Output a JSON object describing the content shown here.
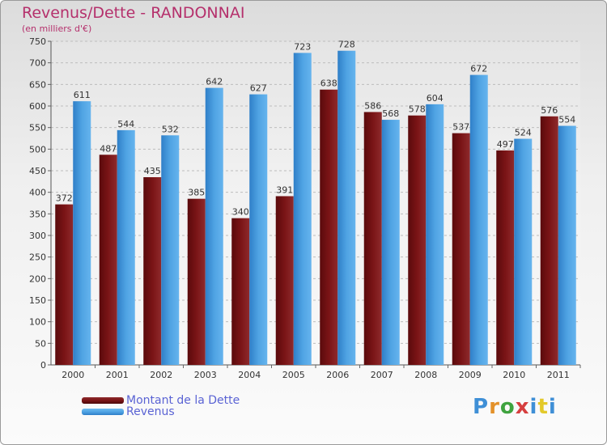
{
  "chart_data": {
    "type": "bar",
    "title": "Revenus/Dette - RANDONNAI",
    "subtitle": "(en milliers d'€)",
    "xlabel": "",
    "ylabel": "",
    "ylim": [
      0,
      750
    ],
    "ytick_step": 50,
    "grid": true,
    "categories": [
      "2000",
      "2001",
      "2002",
      "2003",
      "2004",
      "2005",
      "2006",
      "2007",
      "2008",
      "2009",
      "2010",
      "2011"
    ],
    "series": [
      {
        "name": "Montant de la Dette",
        "color": "#7a1416",
        "values": [
          372,
          487,
          435,
          385,
          340,
          391,
          638,
          586,
          578,
          537,
          497,
          576
        ]
      },
      {
        "name": "Revenus",
        "color": "#4fa3e3",
        "values": [
          611,
          544,
          532,
          642,
          627,
          723,
          728,
          568,
          604,
          672,
          524,
          554
        ]
      }
    ],
    "legend_position": "bottom-left"
  },
  "logo": {
    "letters": [
      "P",
      "r",
      "o",
      "x",
      "i",
      "t",
      "i"
    ],
    "colors": [
      "#3f8fd6",
      "#e3912a",
      "#3fa33f",
      "#d63f3f",
      "#3f8fd6",
      "#e3c92a",
      "#3f8fd6"
    ]
  }
}
